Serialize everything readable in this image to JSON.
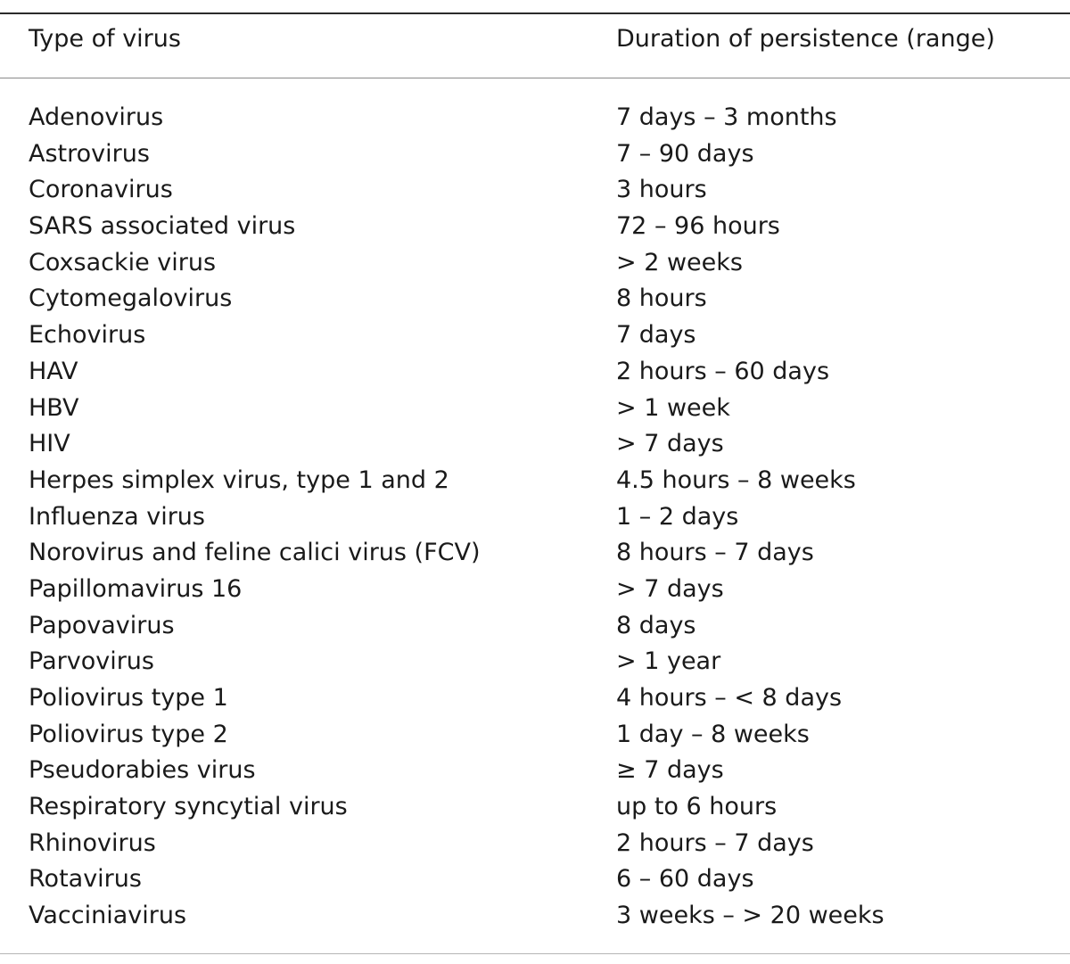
{
  "table": {
    "headers": {
      "virus": "Type of virus",
      "duration": "Duration of persistence (range)"
    },
    "rows": [
      {
        "virus": "Adenovirus",
        "duration": "7 days – 3 months"
      },
      {
        "virus": "Astrovirus",
        "duration": "7 – 90 days"
      },
      {
        "virus": "Coronavirus",
        "duration": "3 hours"
      },
      {
        "virus": "SARS associated virus",
        "duration": "72 – 96 hours"
      },
      {
        "virus": "Coxsackie virus",
        "duration": "> 2 weeks"
      },
      {
        "virus": "Cytomegalovirus",
        "duration": "8 hours"
      },
      {
        "virus": "Echovirus",
        "duration": "7 days"
      },
      {
        "virus": "HAV",
        "duration": "2 hours – 60 days"
      },
      {
        "virus": "HBV",
        "duration": "> 1 week"
      },
      {
        "virus": "HIV",
        "duration": "> 7 days"
      },
      {
        "virus": "Herpes simplex virus, type 1 and 2",
        "duration": "4.5 hours – 8 weeks"
      },
      {
        "virus": "Influenza virus",
        "duration": "1 – 2 days"
      },
      {
        "virus": "Norovirus and feline calici virus (FCV)",
        "duration": "8 hours – 7 days"
      },
      {
        "virus": "Papillomavirus 16",
        "duration": "> 7 days"
      },
      {
        "virus": "Papovavirus",
        "duration": "8 days"
      },
      {
        "virus": "Parvovirus",
        "duration": "> 1 year"
      },
      {
        "virus": "Poliovirus type 1",
        "duration": "4 hours – < 8 days"
      },
      {
        "virus": "Poliovirus type 2",
        "duration": "1 day – 8 weeks"
      },
      {
        "virus": "Pseudorabies virus",
        "duration": "≥ 7 days"
      },
      {
        "virus": "Respiratory syncytial virus",
        "duration": "up to 6 hours"
      },
      {
        "virus": "Rhinovirus",
        "duration": "2 hours – 7 days"
      },
      {
        "virus": "Rotavirus",
        "duration": "6 – 60 days"
      },
      {
        "virus": "Vacciniavirus",
        "duration": "3 weeks – > 20 weeks"
      }
    ]
  }
}
